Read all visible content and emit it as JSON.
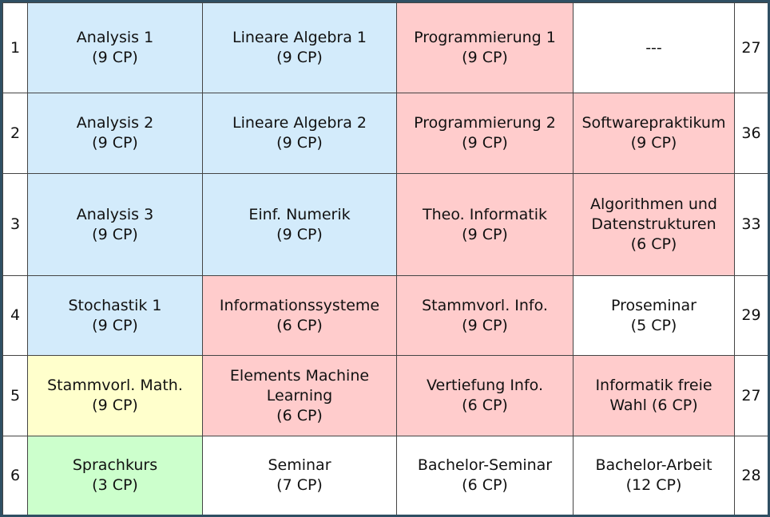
{
  "rows": [
    {
      "semester": "1",
      "cells": [
        {
          "name": "Analysis 1",
          "cp": "(9 CP)"
        },
        {
          "name": "Lineare Algebra 1",
          "cp": "(9 CP)"
        },
        {
          "name": "Programmierung 1",
          "cp": "(9 CP)"
        },
        {
          "name": "---",
          "cp": ""
        }
      ],
      "total": "27"
    },
    {
      "semester": "2",
      "cells": [
        {
          "name": "Analysis 2",
          "cp": "(9 CP)"
        },
        {
          "name": "Lineare Algebra 2",
          "cp": "(9 CP)"
        },
        {
          "name": "Programmierung 2",
          "cp": "(9 CP)"
        },
        {
          "name": "Softwarepraktikum",
          "cp": "(9 CP)"
        }
      ],
      "total": "36"
    },
    {
      "semester": "3",
      "cells": [
        {
          "name": "Analysis 3",
          "cp": "(9 CP)"
        },
        {
          "name": "Einf. Numerik",
          "cp": "(9 CP)"
        },
        {
          "name": "Theo. Informatik",
          "cp": "(9 CP)"
        },
        {
          "name": "Algorithmen und Datenstrukturen",
          "cp": "(6 CP)"
        }
      ],
      "total": "33"
    },
    {
      "semester": "4",
      "cells": [
        {
          "name": "Stochastik 1",
          "cp": "(9 CP)"
        },
        {
          "name": "Informationssysteme",
          "cp": "(6 CP)"
        },
        {
          "name": "Stammvorl. Info.",
          "cp": "(9 CP)"
        },
        {
          "name": "Proseminar",
          "cp": "(5 CP)"
        }
      ],
      "total": "29"
    },
    {
      "semester": "5",
      "cells": [
        {
          "name": "Stammvorl. Math.",
          "cp": "(9 CP)"
        },
        {
          "name": "Elements Machine Learning",
          "cp": "(6 CP)"
        },
        {
          "name": "Vertiefung Info.",
          "cp": "(6 CP)"
        },
        {
          "name": "Informatik freie Wahl (6 CP)",
          "cp": ""
        }
      ],
      "total": "27"
    },
    {
      "semester": "6",
      "cells": [
        {
          "name": "Sprachkurs",
          "cp": "(3 CP)"
        },
        {
          "name": "Seminar",
          "cp": "(7 CP)"
        },
        {
          "name": "Bachelor-Seminar",
          "cp": "(6 CP)"
        },
        {
          "name": "Bachelor-Arbeit",
          "cp": "(12 CP)"
        }
      ],
      "total": "28"
    }
  ],
  "colors": {
    "mathematics": "#d3ebfb",
    "informatics": "#ffcccc",
    "math_elective": "#ffffcc",
    "language": "#ccffcc",
    "other": "#ffffff",
    "frame": "#2f4f63"
  }
}
